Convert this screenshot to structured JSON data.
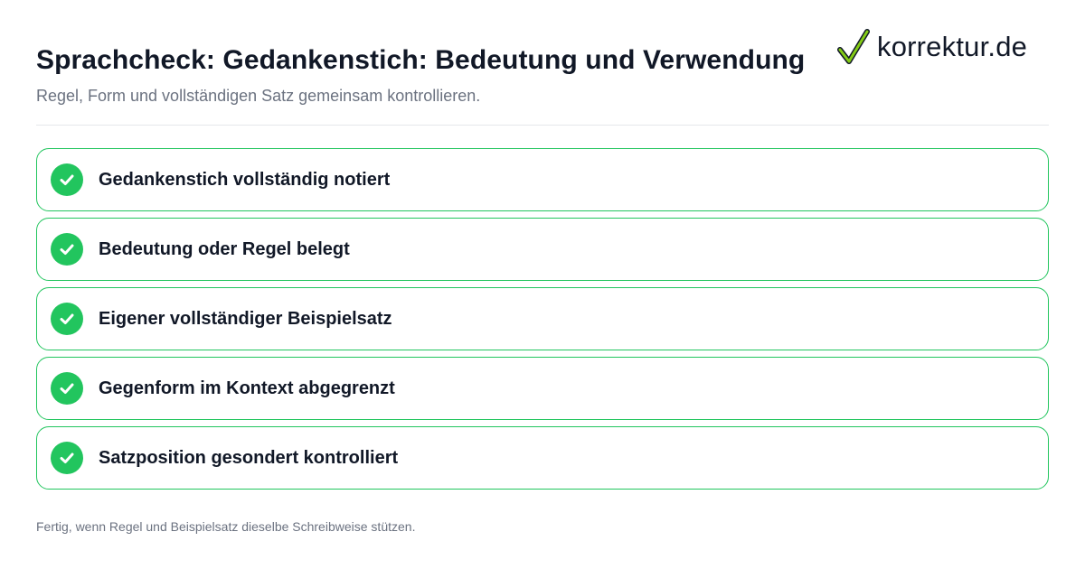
{
  "header": {
    "title": "Sprachcheck: Gedankenstich: Bedeutung und Verwendung",
    "subtitle": "Regel, Form und vollständigen Satz gemeinsam kontrollieren."
  },
  "logo": {
    "text": "korrektur.de",
    "icon": "checkmark-icon"
  },
  "checklist": {
    "items": [
      {
        "label": "Gedankenstich vollständig notiert",
        "checked": true
      },
      {
        "label": "Bedeutung oder Regel belegt",
        "checked": true
      },
      {
        "label": "Eigener vollständiger Beispielsatz",
        "checked": true
      },
      {
        "label": "Gegenform im Kontext abgegrenzt",
        "checked": true
      },
      {
        "label": "Satzposition gesondert kontrolliert",
        "checked": true
      }
    ]
  },
  "footer": {
    "note": "Fertig, wenn Regel und Beispielsatz dieselbe Schreibweise stützen."
  },
  "colors": {
    "accent": "#22c55e",
    "title": "#111827",
    "muted": "#6b7280",
    "divider": "#e5e7eb"
  }
}
